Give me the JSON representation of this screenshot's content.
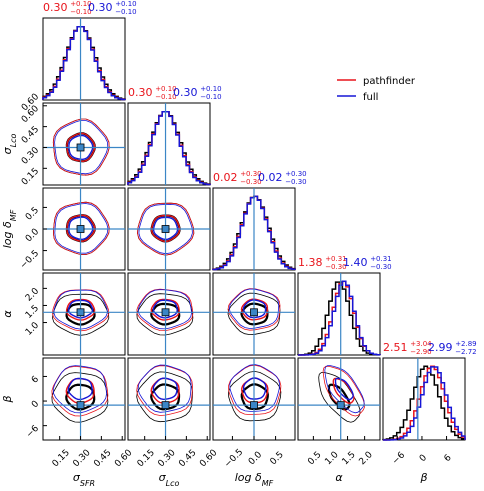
{
  "chart_data": {
    "type": "corner",
    "parameters": [
      {
        "label": "σ_SFR",
        "label_main": "σ",
        "label_sub": "SFR",
        "range": [
          0.03,
          0.62
        ],
        "ticks": [
          "0.15",
          "0.30",
          "0.45",
          "0.60"
        ],
        "tick_values": [
          0.15,
          0.3,
          0.45,
          0.6
        ],
        "true_value": 0.3
      },
      {
        "label": "σ_Lco",
        "label_main": "σ",
        "label_sub": "Lco",
        "range": [
          0.03,
          0.62
        ],
        "ticks": [
          "0.15",
          "0.30",
          "0.45",
          "0.60"
        ],
        "tick_values": [
          0.15,
          0.3,
          0.45,
          0.6
        ],
        "true_value": 0.3
      },
      {
        "label": "log δ_MF",
        "label_main": "log δ",
        "label_sub": "MF",
        "range": [
          -0.95,
          0.95
        ],
        "ticks": [
          "−0.5",
          "0.0",
          "0.5"
        ],
        "tick_values": [
          -0.5,
          0.0,
          0.5
        ],
        "true_value": 0.0
      },
      {
        "label": "α",
        "label_main": "α",
        "label_sub": "",
        "range": [
          0.05,
          2.45
        ],
        "ticks": [
          "0.5",
          "1.0",
          "1.5",
          "2.0"
        ],
        "tick_values": [
          0.5,
          1.0,
          1.5,
          2.0
        ],
        "true_value": 1.3
      },
      {
        "label": "β",
        "label_main": "β",
        "label_sub": "",
        "range": [
          -9.5,
          10.5
        ],
        "ticks": [
          "−6",
          "0",
          "6"
        ],
        "tick_values": [
          -6,
          0,
          6
        ],
        "true_value": -1.0
      }
    ],
    "y_axis_ticks": {
      "1": {
        "ticks": [
          "0.15",
          "0.30",
          "0.45",
          "0.60"
        ],
        "tick_values": [
          0.15,
          0.3,
          0.45,
          0.6
        ]
      },
      "2": {
        "ticks": [
          "−0.5",
          "0.0",
          "0.5"
        ],
        "tick_values": [
          -0.5,
          0.0,
          0.5
        ]
      },
      "3": {
        "ticks": [
          "1.0",
          "1.5",
          "2.0"
        ],
        "tick_values": [
          1.0,
          1.5,
          2.0
        ]
      },
      "4": {
        "ticks": [
          "−6",
          "0",
          "6"
        ],
        "tick_values": [
          -6,
          0,
          6
        ]
      }
    },
    "series": [
      {
        "name": "pathfinder",
        "color": "#e8141b",
        "summaries": [
          {
            "median": "0.30",
            "plus": "+0.10",
            "minus": "−0.10"
          },
          {
            "median": "0.30",
            "plus": "+0.10",
            "minus": "−0.10"
          },
          {
            "median": "0.02",
            "plus": "+0.30",
            "minus": "−0.30"
          },
          {
            "median": "1.38",
            "plus": "+0.31",
            "minus": "−0.30"
          },
          {
            "median": "2.51",
            "plus": "+3.04",
            "minus": "−2.90"
          }
        ]
      },
      {
        "name": "full",
        "color": "#1616d6",
        "summaries": [
          {
            "median": "0.30",
            "plus": "+0.10",
            "minus": "−0.10"
          },
          {
            "median": "0.30",
            "plus": "+0.10",
            "minus": "−0.10"
          },
          {
            "median": "0.02",
            "plus": "+0.30",
            "minus": "−0.30"
          },
          {
            "median": "1.40",
            "plus": "+0.31",
            "minus": "−0.30"
          },
          {
            "median": "2.99",
            "plus": "+2.89",
            "minus": "−2.72"
          }
        ]
      },
      {
        "name": "",
        "color": "#000000",
        "summaries": [
          {
            "median": 0.3,
            "sigma": 0.1
          },
          {
            "median": 0.3,
            "sigma": 0.1
          },
          {
            "median": 0.02,
            "sigma": 0.3
          },
          {
            "median": 1.25,
            "sigma": 0.3
          },
          {
            "median": 1.0,
            "sigma": 3.0
          }
        ]
      }
    ],
    "truth_color": "#3b86c6",
    "legend_position": "upper-right"
  }
}
